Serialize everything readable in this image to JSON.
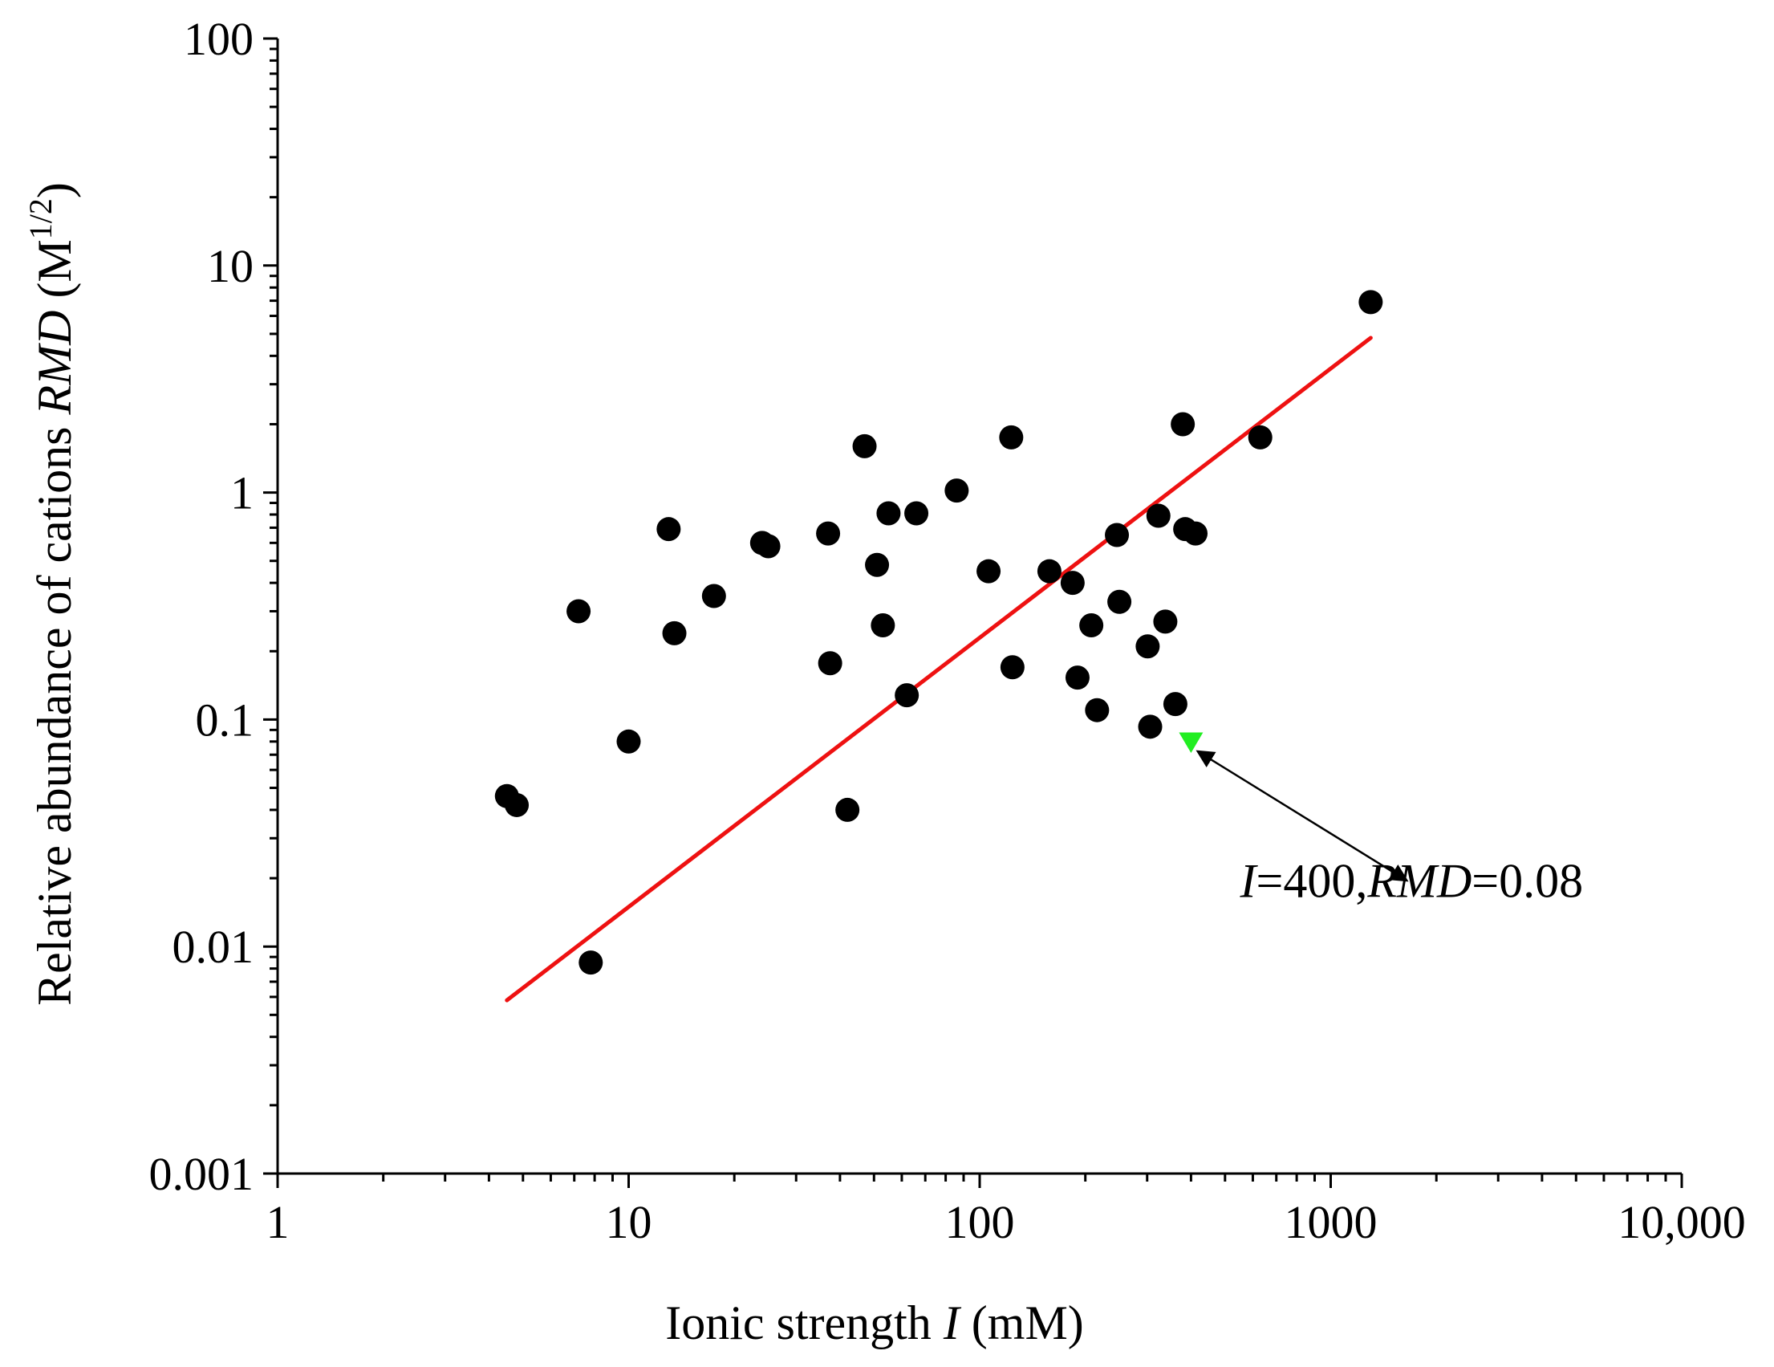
{
  "chart_data": {
    "type": "scatter",
    "title": "",
    "xscale": "log",
    "yscale": "log",
    "xlim": [
      1,
      10000
    ],
    "ylim": [
      0.001,
      100
    ],
    "grid": false,
    "xlabel": {
      "prefix": "Ionic strength ",
      "var": "I",
      "suffix": " (mM)"
    },
    "ylabel": {
      "prefix": "Relative abundance of cations ",
      "var": "RMD",
      "unit_open": " (M",
      "unit_sup": "1/2",
      "unit_close": ")"
    },
    "x_ticks": [
      {
        "value": 1,
        "label": "1"
      },
      {
        "value": 10,
        "label": "10"
      },
      {
        "value": 100,
        "label": "100"
      },
      {
        "value": 1000,
        "label": "1000"
      },
      {
        "value": 10000,
        "label": "10,000"
      }
    ],
    "y_ticks": [
      {
        "value": 0.001,
        "label": "0.001"
      },
      {
        "value": 0.01,
        "label": "0.01"
      },
      {
        "value": 0.1,
        "label": "0.1"
      },
      {
        "value": 1,
        "label": "1"
      },
      {
        "value": 10,
        "label": "10"
      },
      {
        "value": 100,
        "label": "100"
      }
    ],
    "series": [
      {
        "name": "samples",
        "marker": "circle",
        "color": "#000000",
        "points": [
          [
            4.5,
            0.046
          ],
          [
            4.8,
            0.042
          ],
          [
            7.2,
            0.3
          ],
          [
            7.8,
            0.0085
          ],
          [
            10,
            0.08
          ],
          [
            13,
            0.69
          ],
          [
            13.5,
            0.24
          ],
          [
            17.5,
            0.35
          ],
          [
            24,
            0.6
          ],
          [
            25,
            0.58
          ],
          [
            37,
            0.66
          ],
          [
            37.5,
            0.177
          ],
          [
            42,
            0.04
          ],
          [
            47,
            1.6
          ],
          [
            51,
            0.48
          ],
          [
            53,
            0.26
          ],
          [
            55,
            0.81
          ],
          [
            62,
            0.128
          ],
          [
            66,
            0.81
          ],
          [
            86,
            1.02
          ],
          [
            106,
            0.45
          ],
          [
            123,
            1.75
          ],
          [
            124,
            0.17
          ],
          [
            158,
            0.45
          ],
          [
            184,
            0.4
          ],
          [
            190,
            0.153
          ],
          [
            208,
            0.26
          ],
          [
            216,
            0.11
          ],
          [
            246,
            0.65
          ],
          [
            250,
            0.33
          ],
          [
            301,
            0.21
          ],
          [
            306,
            0.093
          ],
          [
            323,
            0.79
          ],
          [
            338,
            0.27
          ],
          [
            361,
            0.117
          ],
          [
            379,
            2.0
          ],
          [
            385,
            0.69
          ],
          [
            412,
            0.66
          ],
          [
            630,
            1.75
          ],
          [
            1300,
            6.9
          ]
        ]
      },
      {
        "name": "highlight",
        "marker": "triangle-down",
        "color": "#22ee22",
        "points": [
          [
            400,
            0.08
          ]
        ]
      }
    ],
    "fit_line": {
      "color": "#ee1111",
      "x": [
        4.5,
        1300
      ],
      "y": [
        0.0058,
        4.8
      ]
    },
    "annotations": [
      {
        "var1": "I",
        "text1": "=400,",
        "var2": "RMD",
        "text2": "=0.08",
        "x": 1700,
        "y": 0.0165,
        "arrow_from": [
          400,
          0.08
        ],
        "arrow_to": [
          1650,
          0.0195
        ]
      }
    ]
  }
}
